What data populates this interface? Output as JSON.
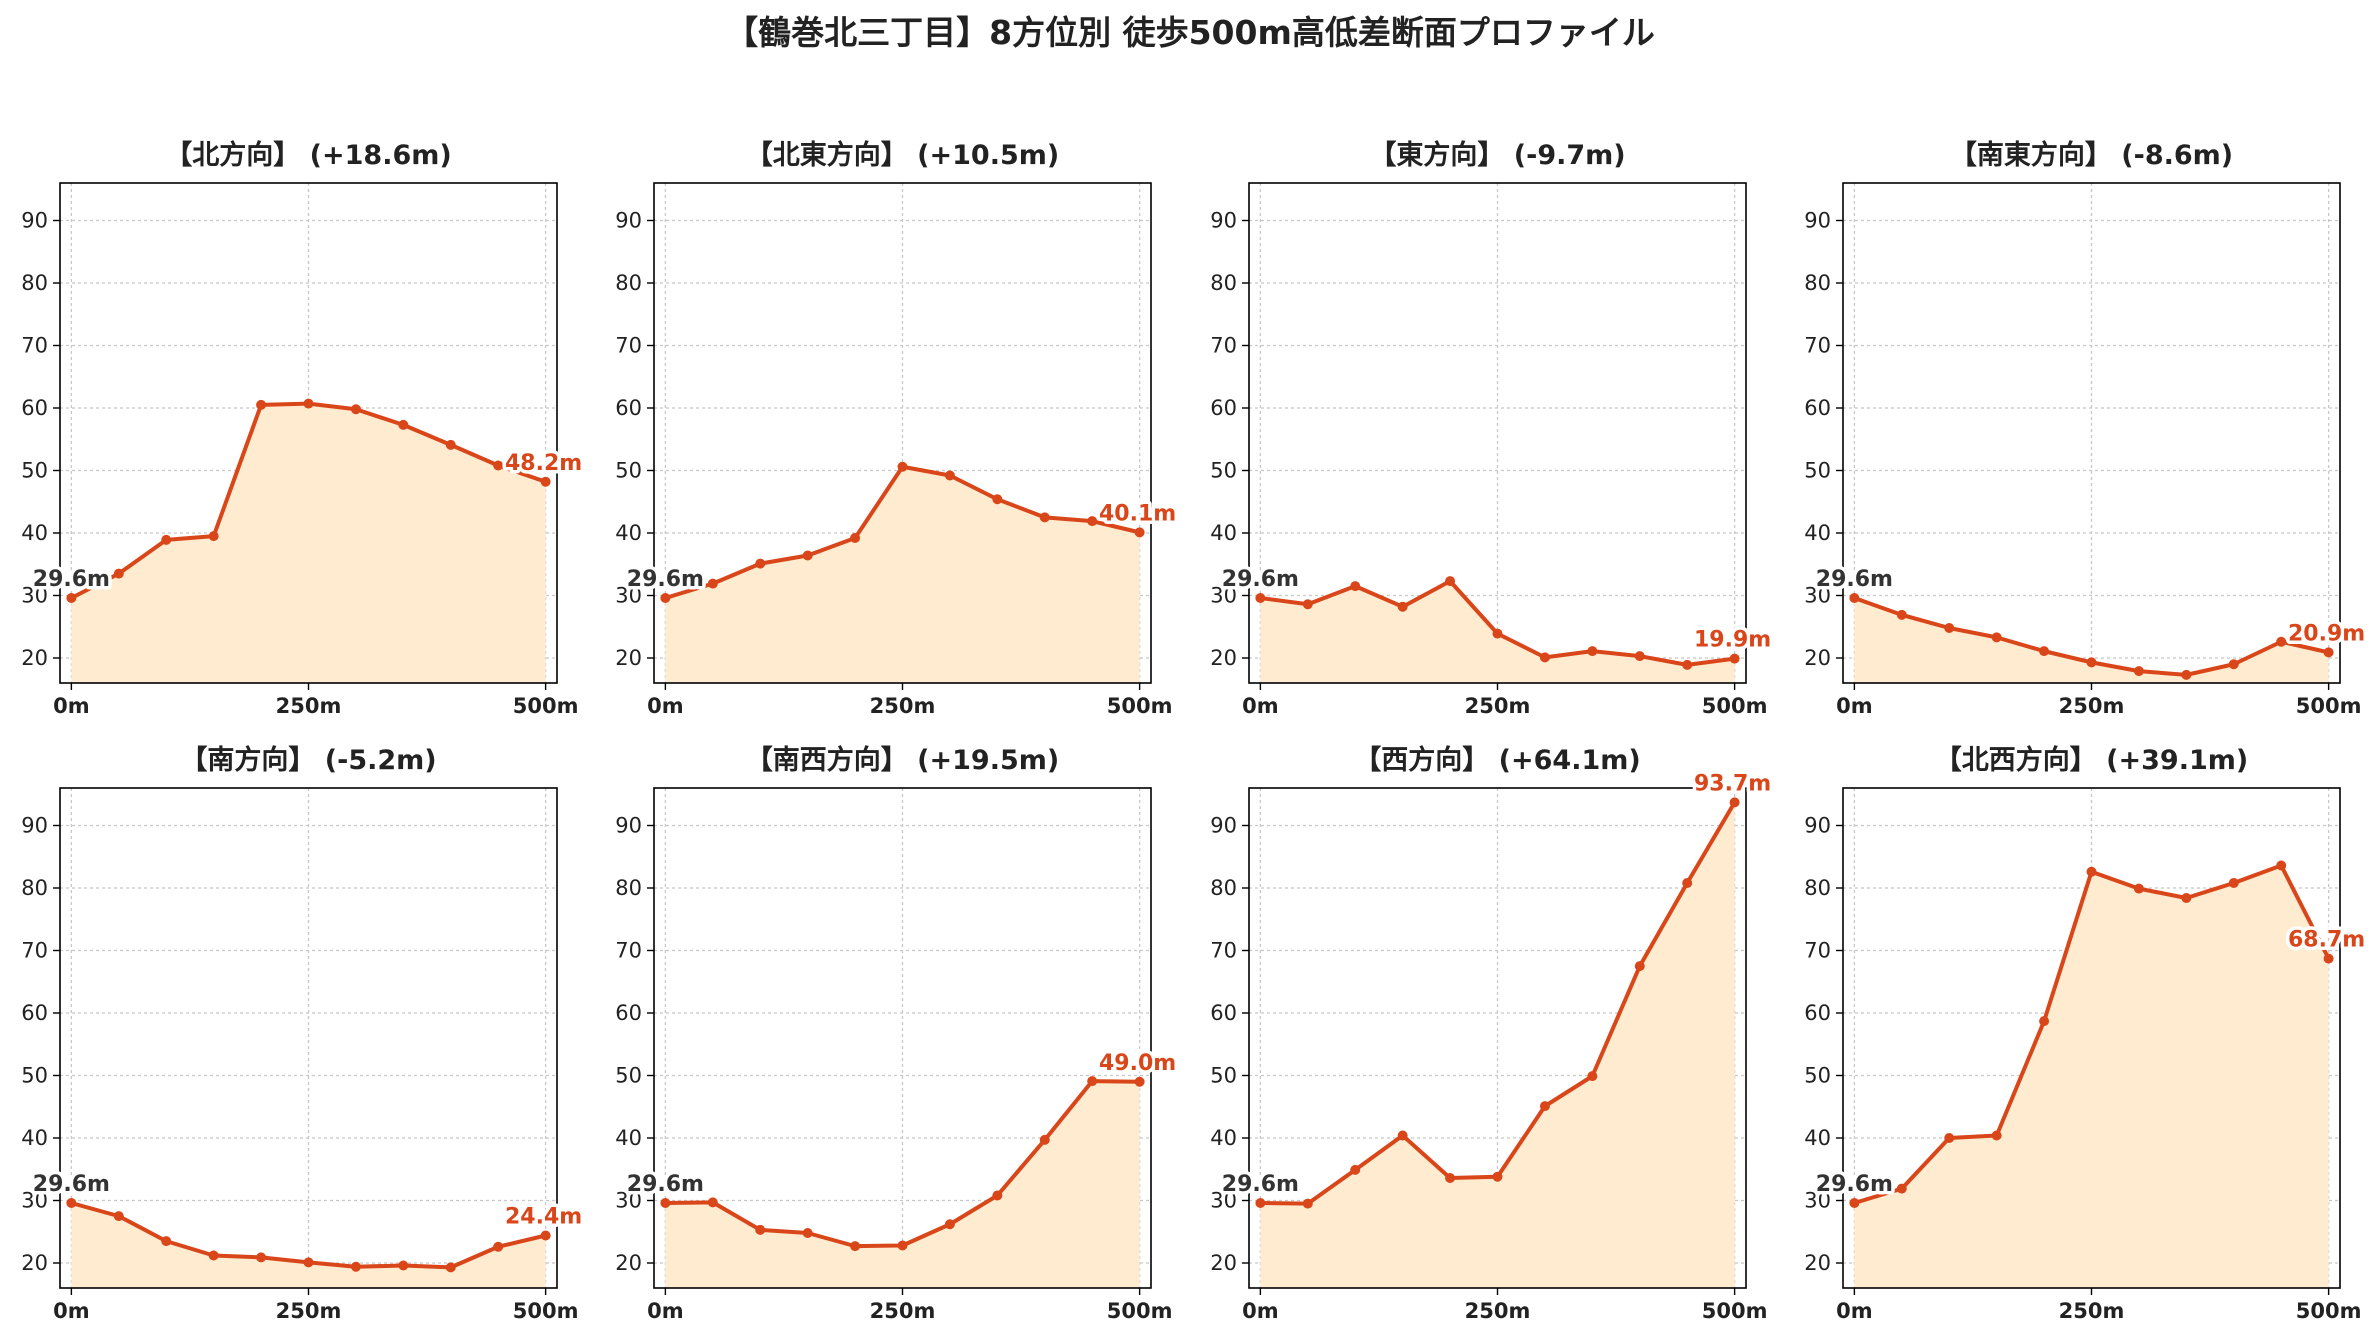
{
  "figure": {
    "title": "【鶴巻北三丁目】8方位別 徒歩500m高低差断面プロファイル"
  },
  "colors": {
    "line": "#d9461a",
    "fill": "#ffebcf",
    "start_label": "#333333",
    "end_label": "#d9461a",
    "grid": "#c8c8c8"
  },
  "chart_data": [
    {
      "type": "area",
      "title": "【北方向】 (+18.6m)",
      "x": [
        0,
        50,
        100,
        150,
        200,
        250,
        300,
        350,
        400,
        450,
        500
      ],
      "y": [
        29.6,
        33.5,
        38.9,
        39.5,
        60.5,
        60.7,
        59.8,
        57.3,
        54.1,
        50.8,
        48.2
      ],
      "start_label": "29.6m",
      "end_label": "48.2m",
      "xticks": [
        0,
        250,
        500
      ],
      "xtick_labels": [
        "0m",
        "250m",
        "500m"
      ],
      "yticks": [
        20,
        30,
        40,
        50,
        60,
        70,
        80,
        90
      ],
      "xlim": [
        -12,
        512
      ],
      "ylim": [
        16,
        96
      ],
      "grid": true
    },
    {
      "type": "area",
      "title": "【北東方向】 (+10.5m)",
      "x": [
        0,
        50,
        100,
        150,
        200,
        250,
        300,
        350,
        400,
        450,
        500
      ],
      "y": [
        29.6,
        31.9,
        35.1,
        36.4,
        39.2,
        50.6,
        49.2,
        45.4,
        42.5,
        41.9,
        40.1
      ],
      "start_label": "29.6m",
      "end_label": "40.1m",
      "xticks": [
        0,
        250,
        500
      ],
      "xtick_labels": [
        "0m",
        "250m",
        "500m"
      ],
      "yticks": [
        20,
        30,
        40,
        50,
        60,
        70,
        80,
        90
      ],
      "xlim": [
        -12,
        512
      ],
      "ylim": [
        16,
        96
      ],
      "grid": true
    },
    {
      "type": "area",
      "title": "【東方向】 (-9.7m)",
      "x": [
        0,
        50,
        100,
        150,
        200,
        250,
        300,
        350,
        400,
        450,
        500
      ],
      "y": [
        29.6,
        28.6,
        31.5,
        28.2,
        32.3,
        23.9,
        20.1,
        21.1,
        20.3,
        18.9,
        19.9
      ],
      "start_label": "29.6m",
      "end_label": "19.9m",
      "xticks": [
        0,
        250,
        500
      ],
      "xtick_labels": [
        "0m",
        "250m",
        "500m"
      ],
      "yticks": [
        20,
        30,
        40,
        50,
        60,
        70,
        80,
        90
      ],
      "xlim": [
        -12,
        512
      ],
      "ylim": [
        16,
        96
      ],
      "grid": true
    },
    {
      "type": "area",
      "title": "【南東方向】 (-8.6m)",
      "x": [
        0,
        50,
        100,
        150,
        200,
        250,
        300,
        350,
        400,
        450,
        500
      ],
      "y": [
        29.6,
        26.9,
        24.8,
        23.3,
        21.1,
        19.3,
        17.9,
        17.3,
        19.0,
        22.6,
        20.9
      ],
      "start_label": "29.6m",
      "end_label": "20.9m",
      "xticks": [
        0,
        250,
        500
      ],
      "xtick_labels": [
        "0m",
        "250m",
        "500m"
      ],
      "yticks": [
        20,
        30,
        40,
        50,
        60,
        70,
        80,
        90
      ],
      "xlim": [
        -12,
        512
      ],
      "ylim": [
        16,
        96
      ],
      "grid": true
    },
    {
      "type": "area",
      "title": "【南方向】 (-5.2m)",
      "x": [
        0,
        50,
        100,
        150,
        200,
        250,
        300,
        350,
        400,
        450,
        500
      ],
      "y": [
        29.6,
        27.5,
        23.5,
        21.2,
        20.9,
        20.1,
        19.4,
        19.6,
        19.3,
        22.6,
        24.4
      ],
      "start_label": "29.6m",
      "end_label": "24.4m",
      "xticks": [
        0,
        250,
        500
      ],
      "xtick_labels": [
        "0m",
        "250m",
        "500m"
      ],
      "yticks": [
        20,
        30,
        40,
        50,
        60,
        70,
        80,
        90
      ],
      "xlim": [
        -12,
        512
      ],
      "ylim": [
        16,
        96
      ],
      "grid": true
    },
    {
      "type": "area",
      "title": "【南西方向】 (+19.5m)",
      "x": [
        0,
        50,
        100,
        150,
        200,
        250,
        300,
        350,
        400,
        450,
        500
      ],
      "y": [
        29.6,
        29.7,
        25.3,
        24.8,
        22.7,
        22.8,
        26.2,
        30.8,
        39.7,
        49.1,
        49.0
      ],
      "start_label": "29.6m",
      "end_label": "49.0m",
      "xticks": [
        0,
        250,
        500
      ],
      "xtick_labels": [
        "0m",
        "250m",
        "500m"
      ],
      "yticks": [
        20,
        30,
        40,
        50,
        60,
        70,
        80,
        90
      ],
      "xlim": [
        -12,
        512
      ],
      "ylim": [
        16,
        96
      ],
      "grid": true
    },
    {
      "type": "area",
      "title": "【西方向】 (+64.1m)",
      "x": [
        0,
        50,
        100,
        150,
        200,
        250,
        300,
        350,
        400,
        450,
        500
      ],
      "y": [
        29.6,
        29.5,
        34.9,
        40.4,
        33.6,
        33.8,
        45.1,
        49.9,
        67.5,
        80.8,
        93.7
      ],
      "start_label": "29.6m",
      "end_label": "93.7m",
      "xticks": [
        0,
        250,
        500
      ],
      "xtick_labels": [
        "0m",
        "250m",
        "500m"
      ],
      "yticks": [
        20,
        30,
        40,
        50,
        60,
        70,
        80,
        90
      ],
      "xlim": [
        -12,
        512
      ],
      "ylim": [
        16,
        96
      ],
      "grid": true
    },
    {
      "type": "area",
      "title": "【北西方向】 (+39.1m)",
      "x": [
        0,
        50,
        100,
        150,
        200,
        250,
        300,
        350,
        400,
        450,
        500
      ],
      "y": [
        29.6,
        31.9,
        40.0,
        40.4,
        58.7,
        82.6,
        79.9,
        78.4,
        80.8,
        83.6,
        68.7
      ],
      "start_label": "29.6m",
      "end_label": "68.7m",
      "xticks": [
        0,
        250,
        500
      ],
      "xtick_labels": [
        "0m",
        "250m",
        "500m"
      ],
      "yticks": [
        20,
        30,
        40,
        50,
        60,
        70,
        80,
        90
      ],
      "xlim": [
        -12,
        512
      ],
      "ylim": [
        16,
        96
      ],
      "grid": true
    }
  ]
}
